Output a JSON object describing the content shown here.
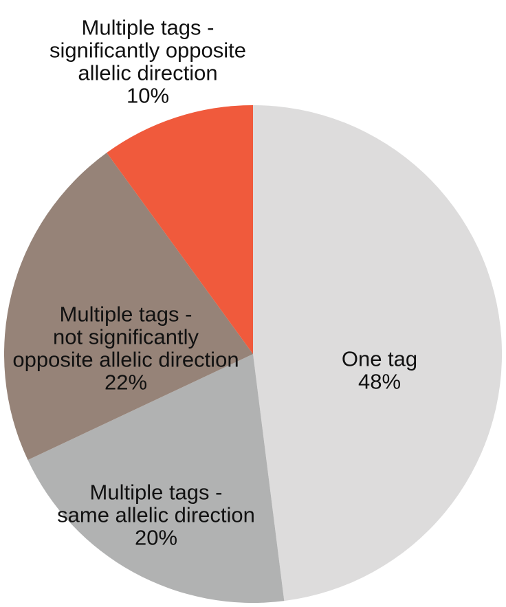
{
  "chart_data": {
    "type": "pie",
    "title": "",
    "start": "12 o'clock",
    "direction": "clockwise",
    "slices": [
      {
        "lines": [
          "One tag"
        ],
        "value_label": "48%",
        "value": 48,
        "color": "#dddcdc"
      },
      {
        "lines": [
          "Multiple tags -",
          "same allelic direction"
        ],
        "value_label": "20%",
        "value": 20,
        "color": "#b1b2b2"
      },
      {
        "lines": [
          "Multiple tags -",
          "not significantly",
          "opposite allelic direction"
        ],
        "value_label": "22%",
        "value": 22,
        "color": "#968378"
      },
      {
        "lines": [
          "Multiple tags -",
          "significantly opposite",
          "allelic direction"
        ],
        "value_label": "10%",
        "value": 10,
        "color": "#f05a3c"
      }
    ]
  }
}
